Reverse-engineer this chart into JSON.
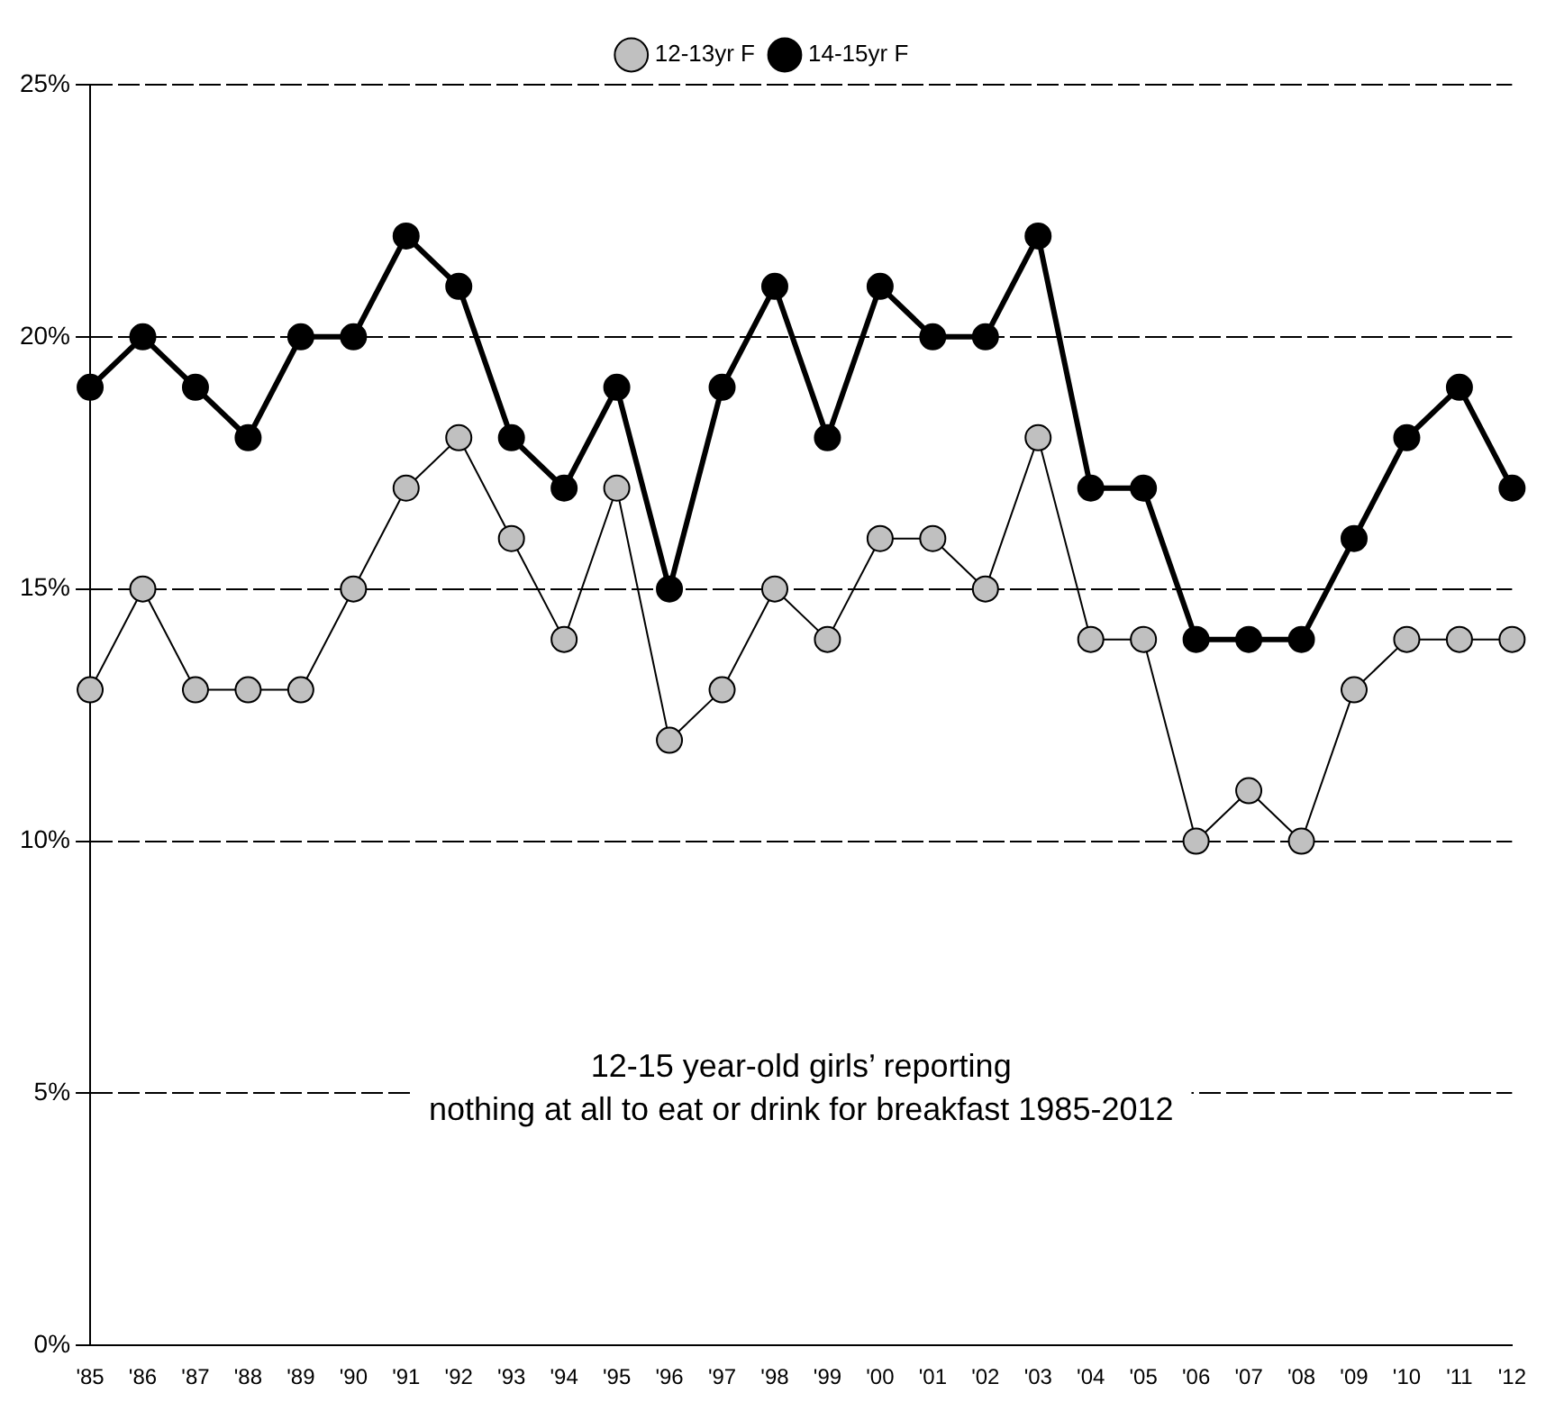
{
  "chart_data": {
    "type": "line",
    "categories": [
      "'85",
      "'86",
      "'87",
      "'88",
      "'89",
      "'90",
      "'91",
      "'92",
      "'93",
      "'94",
      "'95",
      "'96",
      "'97",
      "'98",
      "'99",
      "'00",
      "'01",
      "'02",
      "'03",
      "'04",
      "'05",
      "'06",
      "'07",
      "'08",
      "'09",
      "'10",
      "'11",
      "'12"
    ],
    "series": [
      {
        "name": "12-13yr F",
        "color": "#c0c0c0",
        "values": [
          13,
          15,
          13,
          13,
          13,
          15,
          17,
          18,
          16,
          14,
          17,
          12,
          13,
          15,
          14,
          16,
          16,
          15,
          18,
          14,
          14,
          10,
          11,
          10,
          13,
          14,
          14,
          14
        ]
      },
      {
        "name": "14-15yr F",
        "color": "#000000",
        "values": [
          19,
          20,
          19,
          18,
          20,
          20,
          22,
          21,
          18,
          17,
          19,
          15,
          19,
          21,
          18,
          21,
          20,
          20,
          22,
          17,
          17,
          14,
          14,
          14,
          16,
          18,
          19,
          17
        ]
      }
    ],
    "ylim": [
      0,
      25
    ],
    "yticks": [
      {
        "value": 0,
        "label": "0%"
      },
      {
        "value": 5,
        "label": "5%"
      },
      {
        "value": 10,
        "label": "10%"
      },
      {
        "value": 15,
        "label": "15%"
      },
      {
        "value": 20,
        "label": "20%"
      },
      {
        "value": 25,
        "label": "25%"
      }
    ],
    "grid": "y",
    "legend": "top",
    "marker": "circle",
    "line_style": "solid",
    "annotations": [
      "12-15 year-old girls’ reporting\nnothing at all to eat or drink for breakfast 1985-2012"
    ]
  }
}
